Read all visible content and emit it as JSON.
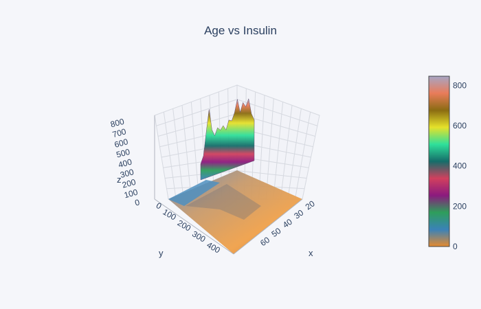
{
  "chart_data": {
    "type": "surface",
    "title": "Age vs Insulin",
    "axes": {
      "x": {
        "title": "x",
        "range": [
          20,
          70
        ],
        "ticks": [
          "20",
          "30",
          "40",
          "50",
          "60"
        ]
      },
      "y": {
        "title": "y",
        "range": [
          0,
          450
        ],
        "ticks": [
          "0",
          "100",
          "200",
          "300",
          "400"
        ]
      },
      "z": {
        "title": "z",
        "range": [
          0,
          850
        ],
        "ticks": [
          "0",
          "100",
          "200",
          "300",
          "400",
          "500",
          "600",
          "700",
          "800"
        ]
      }
    },
    "colorbar": {
      "range": [
        0,
        846
      ],
      "ticks": [
        "0",
        "200",
        "400",
        "600",
        "800"
      ],
      "colors": [
        "#e58a2f",
        "#3a82b8",
        "#2e9e5b",
        "#8b1a7e",
        "#d1405e",
        "#156d6a",
        "#2fe09a",
        "#e6e12a",
        "#8b6c12",
        "#e97c5a",
        "#a7a5c4"
      ]
    },
    "ridge_profile": {
      "x": [
        21,
        22,
        23,
        24,
        25,
        26,
        27,
        28,
        29,
        30,
        31,
        32,
        33,
        34,
        35,
        36,
        37,
        38,
        39,
        40
      ],
      "z": [
        180,
        260,
        520,
        760,
        520,
        440,
        520,
        480,
        520,
        460,
        560,
        540,
        620,
        760,
        600,
        700,
        640,
        720,
        540,
        460
      ]
    },
    "grid": true,
    "legend": "colorbar-right"
  }
}
